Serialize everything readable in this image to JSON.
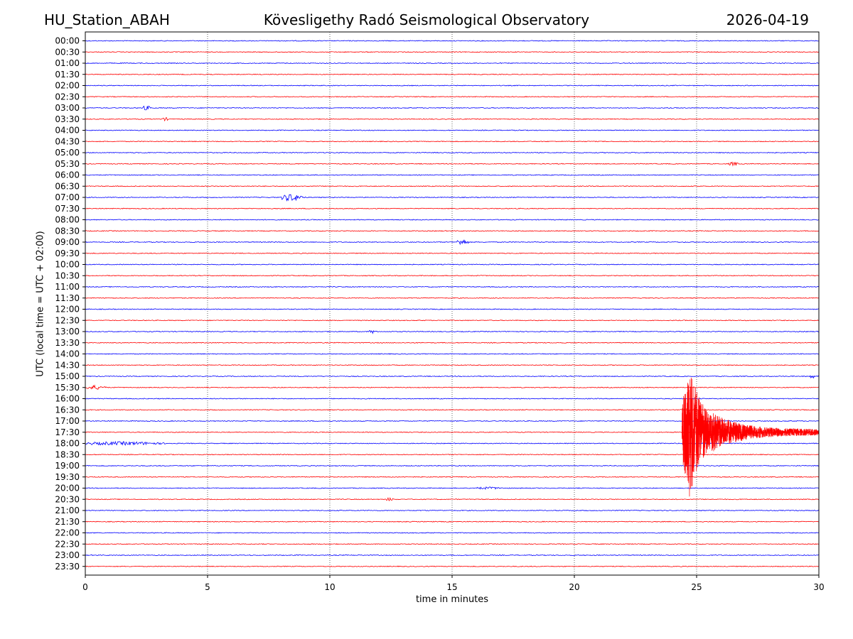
{
  "header": {
    "station": "HU_Station_ABAH",
    "title": "Kövesligethy Radó Seismological Observatory",
    "date": "2026-04-19"
  },
  "chart_data": {
    "type": "line",
    "title": "Kövesligethy Radó Seismological Observatory",
    "xlabel": "time in minutes",
    "ylabel": "UTC (local time = UTC + 02:00)",
    "xlim": [
      0,
      30
    ],
    "xticks": [
      0,
      5,
      10,
      15,
      20,
      25,
      30
    ],
    "vertical_grid_minutes": [
      5,
      10,
      15,
      20,
      25
    ],
    "trace_colors": [
      "#0000ff",
      "#ff0000"
    ],
    "rows": [
      "00:00",
      "00:30",
      "01:00",
      "01:30",
      "02:00",
      "02:30",
      "03:00",
      "03:30",
      "04:00",
      "04:30",
      "05:00",
      "05:30",
      "06:00",
      "06:30",
      "07:00",
      "07:30",
      "08:00",
      "08:30",
      "09:00",
      "09:30",
      "10:00",
      "10:30",
      "11:00",
      "11:30",
      "12:00",
      "12:30",
      "13:00",
      "13:30",
      "14:00",
      "14:30",
      "15:00",
      "15:30",
      "16:00",
      "16:30",
      "17:00",
      "17:30",
      "18:00",
      "18:30",
      "19:00",
      "19:30",
      "20:00",
      "20:30",
      "21:00",
      "21:30",
      "22:00",
      "22:30",
      "23:00",
      "23:30"
    ],
    "events": [
      {
        "row": 6,
        "start_min": 2.3,
        "dur_min": 0.8,
        "amp": 0.25
      },
      {
        "row": 7,
        "start_min": 3.1,
        "dur_min": 0.6,
        "amp": 0.18
      },
      {
        "row": 11,
        "start_min": 26.3,
        "dur_min": 0.8,
        "amp": 0.2
      },
      {
        "row": 14,
        "start_min": 8.0,
        "dur_min": 1.8,
        "amp": 0.45
      },
      {
        "row": 18,
        "start_min": 15.2,
        "dur_min": 0.9,
        "amp": 0.4
      },
      {
        "row": 26,
        "start_min": 11.6,
        "dur_min": 0.6,
        "amp": 0.2
      },
      {
        "row": 30,
        "start_min": 29.6,
        "dur_min": 0.4,
        "amp": 0.4
      },
      {
        "row": 31,
        "start_min": 0.0,
        "dur_min": 1.6,
        "amp": 0.25
      },
      {
        "row": 36,
        "start_min": 0.0,
        "dur_min": 6.2,
        "amp": 0.2
      },
      {
        "row": 40,
        "start_min": 16.0,
        "dur_min": 2.0,
        "amp": 0.12
      },
      {
        "row": 41,
        "start_min": 12.3,
        "dur_min": 0.6,
        "amp": 0.18
      },
      {
        "row": 35,
        "start_min": 24.4,
        "dur_min": 5.6,
        "amp": 12.0,
        "type": "quake"
      }
    ]
  }
}
